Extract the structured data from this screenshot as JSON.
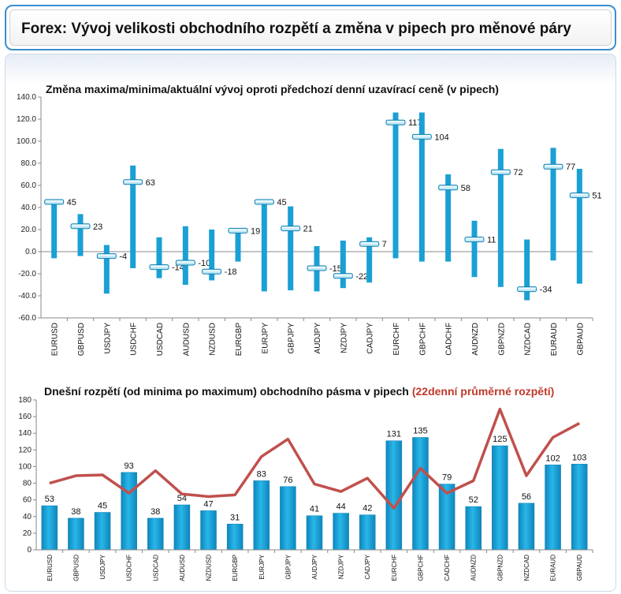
{
  "header": {
    "title": "Forex: Vývoj velikosti obchodního rozpětí a změna v pipech pro měnové páry"
  },
  "colors": {
    "bar": "#1aa0d4",
    "bar_dark": "#0e7fb0",
    "line": "#c0504d",
    "header_border": "#3a8fd0"
  },
  "chart_data": [
    {
      "type": "bar",
      "title": "Změna maxima/minima/aktuální vývoj oproti předchozí denní uzavírací ceně (v pipech)",
      "categories": [
        "EURUSD",
        "GBPUSD",
        "USDJPY",
        "USDCHF",
        "USDCAD",
        "AUDUSD",
        "NZDUSD",
        "EURGBP",
        "EURJPY",
        "GBPJPY",
        "AUDJPY",
        "NZDJPY",
        "CADJPY",
        "EURCHF",
        "GBPCHF",
        "CADCHF",
        "AUDNZD",
        "GBPNZD",
        "NZDCAD",
        "EURAUD",
        "GBPAUD"
      ],
      "series": [
        {
          "values_high": [
            46,
            34,
            6,
            78,
            13,
            23,
            20,
            21,
            46,
            41,
            5,
            10,
            13,
            126,
            126,
            70,
            28,
            93,
            11,
            94,
            75
          ]
        },
        {
          "values_low": [
            -6,
            -4,
            -38,
            -15,
            -24,
            -30,
            -26,
            -9,
            -36,
            -35,
            -36,
            -33,
            -28,
            -6,
            -9,
            -9,
            -23,
            -32,
            -44,
            -8,
            -29
          ]
        },
        {
          "values_current": [
            45,
            23,
            -4,
            63,
            -14,
            -10,
            -18,
            19,
            45,
            21,
            -15,
            -22,
            7,
            117,
            104,
            58,
            11,
            72,
            -34,
            77,
            51
          ]
        }
      ],
      "ylim": [
        -60,
        140
      ],
      "yticks": [
        "140.0",
        "120.0",
        "100.0",
        "80.0",
        "60.0",
        "40.0",
        "20.0",
        "0.0",
        "-20.0",
        "-40.0",
        "-60.0"
      ],
      "grid": false
    },
    {
      "type": "bar",
      "title": "Dnešní rozpětí (od minima po maximum) obchodního pásma v pipech",
      "title_suffix": "(22denní průměrné rozpětí)",
      "categories": [
        "EURUSD",
        "GBPUSD",
        "USDJPY",
        "USDCHF",
        "USDCAD",
        "AUDUSD",
        "NZDUSD",
        "EURGBP",
        "EURJPY",
        "GBPJPY",
        "AUDJPY",
        "NZDJPY",
        "CADJPY",
        "EURCHF",
        "GBPCHF",
        "CADCHF",
        "AUDNZD",
        "GBPNZD",
        "NZDCAD",
        "EURAUD",
        "GBPAUD"
      ],
      "series": [
        {
          "values": [
            53,
            38,
            45,
            93,
            38,
            54,
            47,
            31,
            83,
            76,
            41,
            44,
            42,
            131,
            135,
            79,
            52,
            125,
            56,
            102,
            103
          ]
        },
        {
          "line_values": [
            80,
            89,
            90,
            68,
            95,
            67,
            64,
            66,
            112,
            133,
            79,
            70,
            86,
            50,
            98,
            68,
            83,
            169,
            89,
            135,
            152
          ]
        }
      ],
      "ylim": [
        0,
        180
      ],
      "yticks": [
        "180",
        "160",
        "140",
        "120",
        "100",
        "80",
        "60",
        "40",
        "20",
        "0"
      ],
      "grid": false
    }
  ]
}
